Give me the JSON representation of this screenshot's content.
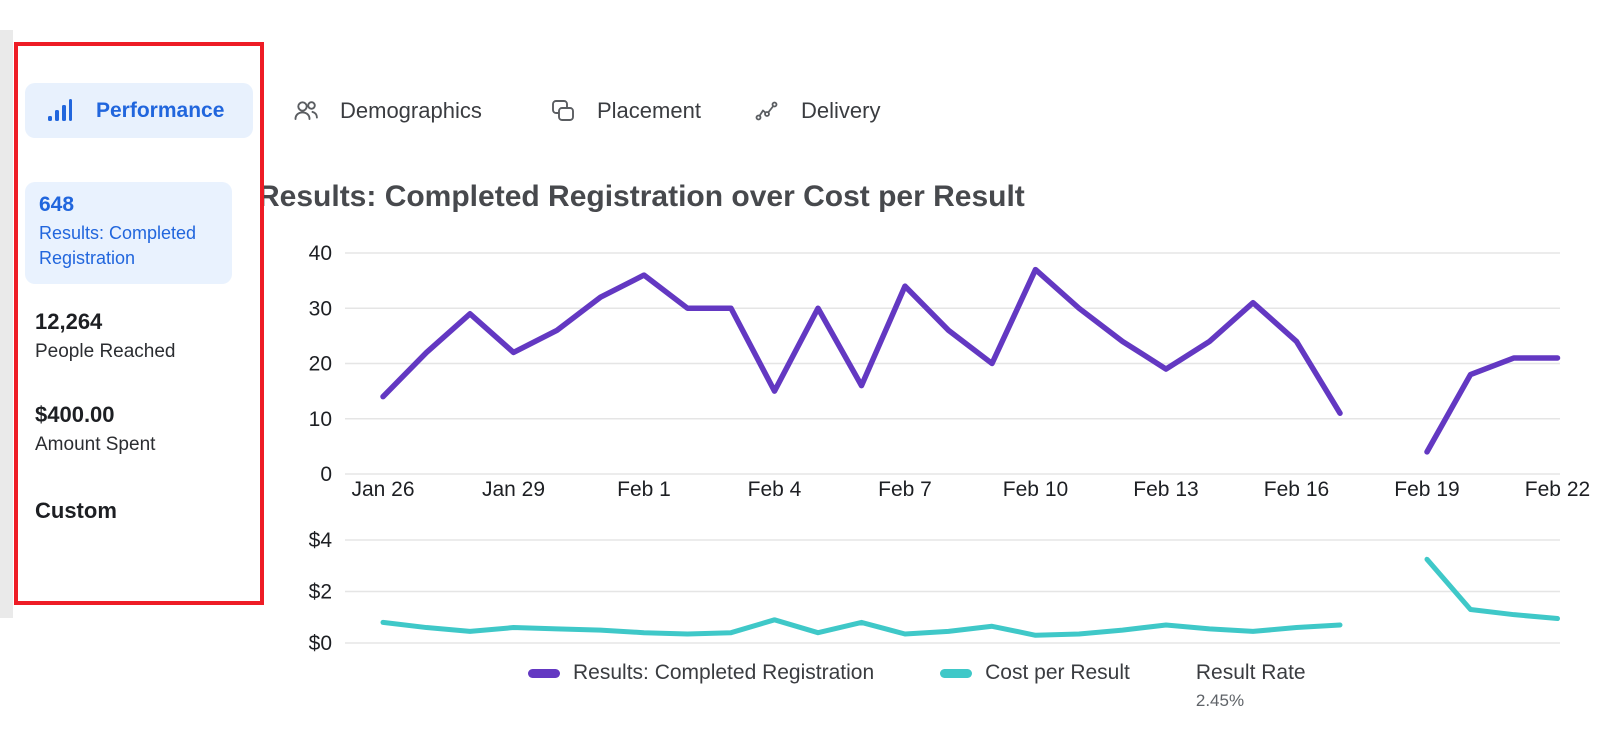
{
  "colors": {
    "accent_blue": "#2166dd",
    "tab_highlight_bg": "#e8f1fd",
    "metric_card_bg": "#e9f2fe",
    "purple_line": "#6338c2",
    "teal_line": "#3fc8c8",
    "annotation_red": "#ee1c25",
    "gridline": "#e5e5e5"
  },
  "sidebar": {
    "performance_tab": "Performance",
    "metric_results_value": "648",
    "metric_results_label": "Results: Completed Registration",
    "metric_reach_value": "12,264",
    "metric_reach_label": "People Reached",
    "metric_spent_value": "$400.00",
    "metric_spent_label": "Amount Spent",
    "metric_custom": "Custom"
  },
  "tabs": {
    "demographics": "Demographics",
    "placement": "Placement",
    "delivery": "Delivery"
  },
  "chart_title": "Results: Completed Registration over Cost per Result",
  "chart_data": {
    "type": "line",
    "title": "Results: Completed Registration over Cost per Result",
    "x_days": [
      "Jan 26",
      "Jan 27",
      "Jan 28",
      "Jan 29",
      "Jan 30",
      "Jan 31",
      "Feb 1",
      "Feb 2",
      "Feb 3",
      "Feb 4",
      "Feb 5",
      "Feb 6",
      "Feb 7",
      "Feb 8",
      "Feb 9",
      "Feb 10",
      "Feb 11",
      "Feb 12",
      "Feb 13",
      "Feb 14",
      "Feb 15",
      "Feb 16",
      "Feb 17",
      "Feb 18",
      "Feb 19",
      "Feb 20",
      "Feb 21",
      "Feb 22"
    ],
    "x_ticks": [
      {
        "label": "Jan 26",
        "day": 0
      },
      {
        "label": "Jan 29",
        "day": 3
      },
      {
        "label": "Feb 1",
        "day": 6
      },
      {
        "label": "Feb 4",
        "day": 9
      },
      {
        "label": "Feb 7",
        "day": 12
      },
      {
        "label": "Feb 10",
        "day": 15
      },
      {
        "label": "Feb 13",
        "day": 18
      },
      {
        "label": "Feb 16",
        "day": 21
      },
      {
        "label": "Feb 19",
        "day": 24
      },
      {
        "label": "Feb 22",
        "day": 27
      }
    ],
    "upper_y_ticks": [
      "0",
      "10",
      "20",
      "30",
      "40"
    ],
    "lower_y_ticks": [
      "$0",
      "$2",
      "$4"
    ],
    "upper_ylim": [
      0,
      40
    ],
    "lower_ylim": [
      0,
      4
    ],
    "series": [
      {
        "name": "Results: Completed Registration",
        "color": "#6338c2",
        "values": [
          14,
          22,
          29,
          22,
          26,
          32,
          36,
          30,
          30,
          15,
          30,
          16,
          34,
          26,
          20,
          37,
          30,
          24,
          19,
          24,
          31,
          24,
          11,
          null,
          4,
          18,
          21,
          21
        ]
      },
      {
        "name": "Cost per Result",
        "color": "#3fc8c8",
        "values": [
          0.8,
          0.6,
          0.45,
          0.6,
          0.55,
          0.5,
          0.4,
          0.35,
          0.4,
          0.9,
          0.4,
          0.8,
          0.35,
          0.45,
          0.65,
          0.3,
          0.35,
          0.5,
          0.7,
          0.55,
          0.45,
          0.6,
          0.7,
          null,
          3.25,
          1.3,
          1.1,
          0.95
        ]
      }
    ]
  },
  "legend": {
    "series1": "Results: Completed Registration",
    "series2": "Cost per Result",
    "stat_label": "Result Rate",
    "stat_value": "2.45%"
  }
}
